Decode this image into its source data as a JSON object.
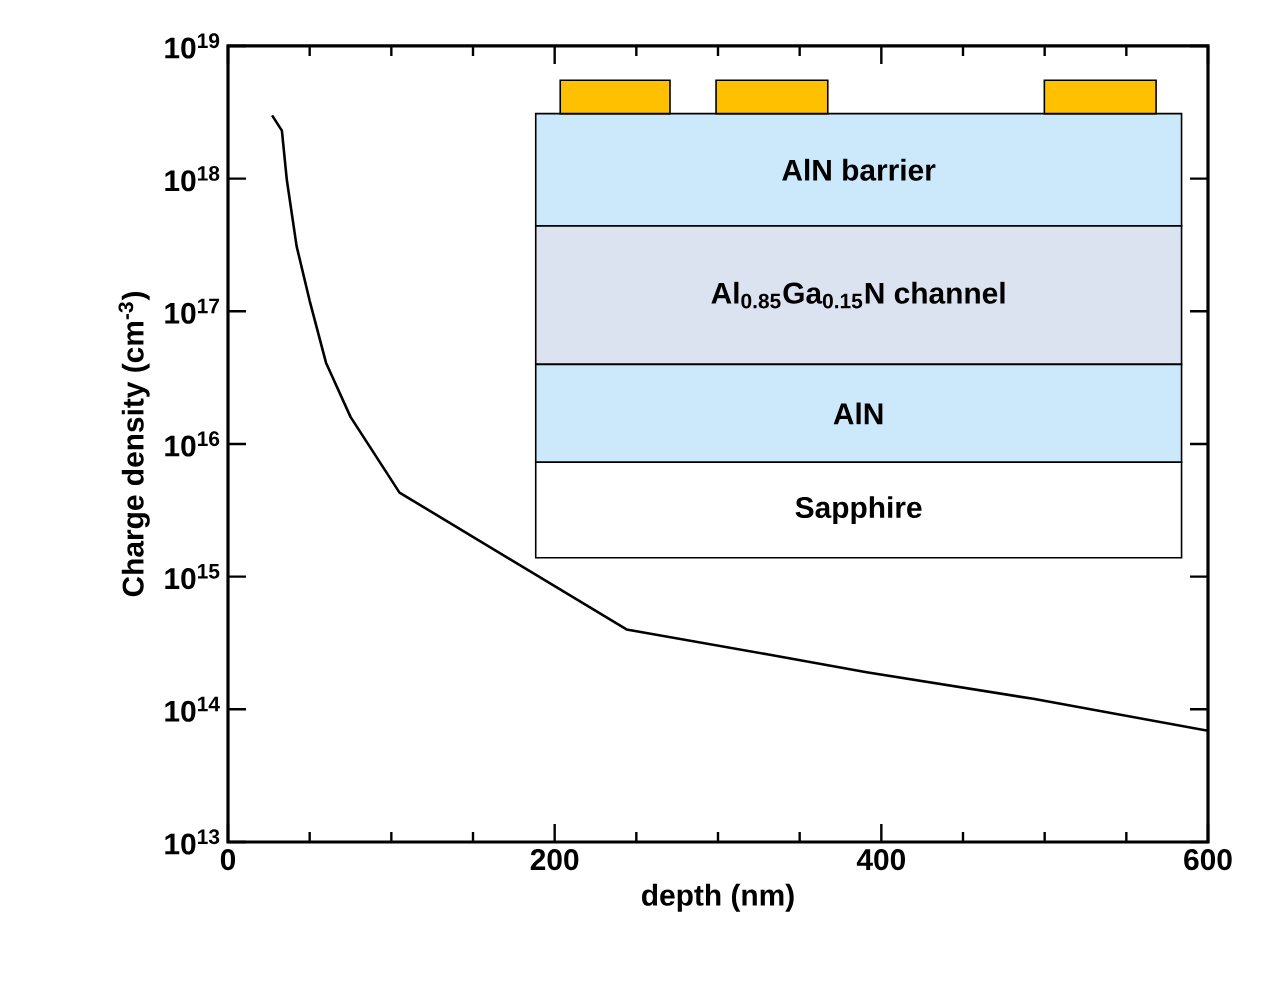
{
  "chart_data": {
    "type": "line",
    "xlabel": "depth (nm)",
    "ylabel": "Charge density (cm$^{-3}$)",
    "log": "y",
    "xlim": [
      0,
      600
    ],
    "xticks": [
      0,
      200,
      400,
      600
    ],
    "ylim": [
      10000000000000.0,
      1e+19
    ],
    "yticks": [
      {
        "value": 10000000000000.0,
        "label": "10$^{13}$"
      },
      {
        "value": 100000000000000.0,
        "label": "10$^{14}$"
      },
      {
        "value": 1000000000000000.0,
        "label": "10$^{15}$"
      },
      {
        "value": 1e+16,
        "label": "10$^{16}$"
      },
      {
        "value": 1e+17,
        "label": "10$^{17}$"
      },
      {
        "value": 1e+18,
        "label": "10$^{18}$"
      },
      {
        "value": 1e+19,
        "label": "10$^{19}$"
      }
    ],
    "series": [
      {
        "color": "#000000",
        "x": [
          27,
          33,
          36,
          42,
          50,
          60,
          75,
          105,
          244,
          330,
          391,
          493,
          600
        ],
        "values": [
          3e+18,
          2.3e+18,
          9.8e+17,
          3.1e+17,
          1.2e+17,
          4.1e+16,
          1.6e+16,
          4300000000000000.0,
          400000000000000.0,
          260000000000000.0,
          190000000000000.0,
          120000000000000.0,
          69000000000000.0
        ]
      }
    ],
    "annotations": [
      "AlN barrier",
      "Al$_{0.85}$Ga$_{0.15}$N channel",
      "AlN",
      "Sapphire"
    ]
  }
}
